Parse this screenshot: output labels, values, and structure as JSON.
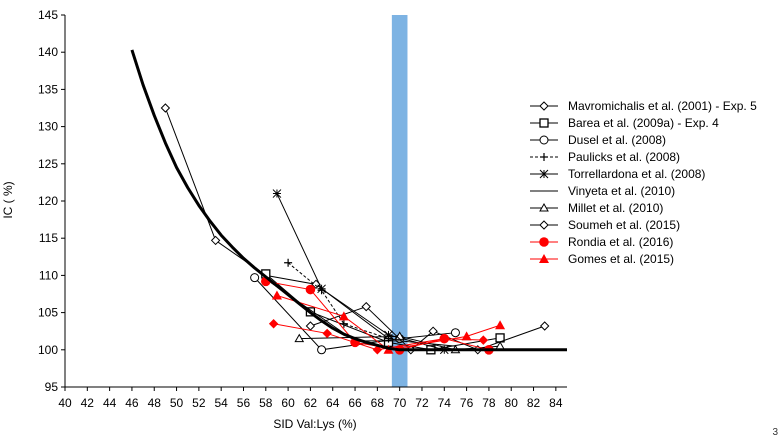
{
  "chart_data": {
    "type": "line",
    "title": "",
    "xlabel": "SID Val:Lys (%)",
    "ylabel": "IC ( %)",
    "xlim": [
      40,
      85
    ],
    "ylim": [
      95,
      145
    ],
    "xticks": [
      40,
      42,
      44,
      46,
      48,
      50,
      52,
      54,
      56,
      58,
      60,
      62,
      64,
      66,
      68,
      70,
      72,
      74,
      76,
      78,
      80,
      82,
      84
    ],
    "yticks": [
      95,
      100,
      105,
      110,
      115,
      120,
      125,
      130,
      135,
      140,
      145
    ],
    "grid": false,
    "legend_position": "right",
    "highlight_band": {
      "x": [
        69.3,
        70.7
      ],
      "color": "#7db3e3"
    },
    "fitted_curve": {
      "color": "#000000",
      "points": [
        [
          46,
          140.3
        ],
        [
          47,
          135.6
        ],
        [
          48,
          131.5
        ],
        [
          49,
          127.8
        ],
        [
          50,
          124.5
        ],
        [
          51,
          121.8
        ],
        [
          52,
          119.4
        ],
        [
          53,
          117.3
        ],
        [
          54,
          115.4
        ],
        [
          55,
          113.8
        ],
        [
          56,
          112.3
        ],
        [
          57,
          111
        ],
        [
          58,
          109.8
        ],
        [
          59,
          108.6
        ],
        [
          60,
          107.4
        ],
        [
          61,
          106.2
        ],
        [
          62,
          105
        ],
        [
          63,
          103.9
        ],
        [
          64,
          102.9
        ],
        [
          65,
          102.1
        ],
        [
          66,
          101.5
        ],
        [
          67,
          101
        ],
        [
          68,
          100.6
        ],
        [
          69,
          100.2
        ],
        [
          70,
          100
        ],
        [
          85,
          100
        ]
      ]
    },
    "series": [
      {
        "name": "Mavromichalis et al. (2001) - Exp. 5",
        "marker": "diamond-open",
        "color": "#000000",
        "dash": false,
        "points": [
          [
            49,
            132.5
          ],
          [
            53.5,
            114.7
          ],
          [
            58,
            110
          ],
          [
            62.5,
            108.8
          ],
          [
            69,
            101.5
          ]
        ]
      },
      {
        "name": "Barea et al. (2009a) - Exp. 4",
        "marker": "square-open",
        "color": "#000000",
        "dash": false,
        "points": [
          [
            58,
            110.2
          ],
          [
            62,
            105.1
          ],
          [
            69,
            101
          ],
          [
            72.8,
            100
          ],
          [
            79,
            101.6
          ]
        ]
      },
      {
        "name": "Dusel et al. (2008)",
        "marker": "circle-open",
        "color": "#000000",
        "dash": false,
        "points": [
          [
            57,
            109.7
          ],
          [
            63,
            100
          ],
          [
            70,
            101.5
          ],
          [
            75,
            102.3
          ]
        ]
      },
      {
        "name": "Paulicks et al. (2008)",
        "marker": "plus",
        "color": "#000000",
        "dash": true,
        "points": [
          [
            60,
            111.7
          ],
          [
            63,
            108
          ],
          [
            65,
            103.5
          ],
          [
            69,
            101.5
          ]
        ]
      },
      {
        "name": "Torrellardona et al. (2008)",
        "marker": "star",
        "color": "#000000",
        "dash": false,
        "points": [
          [
            59,
            121
          ],
          [
            63,
            108.2
          ],
          [
            69,
            102
          ],
          [
            74,
            100
          ]
        ]
      },
      {
        "name": "Vinyeta et al. (2010)",
        "marker": "none",
        "color": "#000000",
        "dash": false,
        "points": [
          [
            58,
            109.5
          ],
          [
            66,
            101.2
          ],
          [
            70,
            101.2
          ],
          [
            75,
            100.5
          ]
        ]
      },
      {
        "name": "Millet et al. (2010)",
        "marker": "triangle-open",
        "color": "#000000",
        "dash": false,
        "points": [
          [
            61,
            101.5
          ],
          [
            70,
            101.8
          ],
          [
            75,
            100
          ],
          [
            79,
            100.5
          ]
        ]
      },
      {
        "name": "Soumeh et al. (2015)",
        "marker": "diamond-open",
        "color": "#000000",
        "dash": false,
        "points": [
          [
            62,
            103.2
          ],
          [
            67,
            105.8
          ],
          [
            71,
            100
          ],
          [
            73,
            102.5
          ],
          [
            77,
            100
          ],
          [
            83,
            103.2
          ]
        ]
      },
      {
        "name": "Rondia et al. (2016)",
        "marker": "circle-filled",
        "color": "#ff0000",
        "dash": false,
        "points": [
          [
            58,
            109.2
          ],
          [
            62,
            108.1
          ],
          [
            66,
            101
          ],
          [
            70,
            100
          ],
          [
            74,
            101.5
          ],
          [
            78,
            100
          ]
        ]
      },
      {
        "name": "Gomes et al. (2015)",
        "marker": "triangle-filled",
        "color": "#ff0000",
        "dash": false,
        "points": [
          [
            59,
            107.3
          ],
          [
            65,
            104.5
          ],
          [
            69,
            100
          ],
          [
            76,
            101.8
          ],
          [
            79,
            103.3
          ]
        ]
      },
      {
        "marker": "diamond-filled",
        "color": "#ff0000",
        "dash": false,
        "points": [
          [
            58.7,
            103.5
          ],
          [
            63.5,
            102.2
          ],
          [
            68,
            100
          ],
          [
            74,
            101.5
          ],
          [
            77.5,
            101.3
          ]
        ]
      }
    ]
  },
  "page_number": "3"
}
